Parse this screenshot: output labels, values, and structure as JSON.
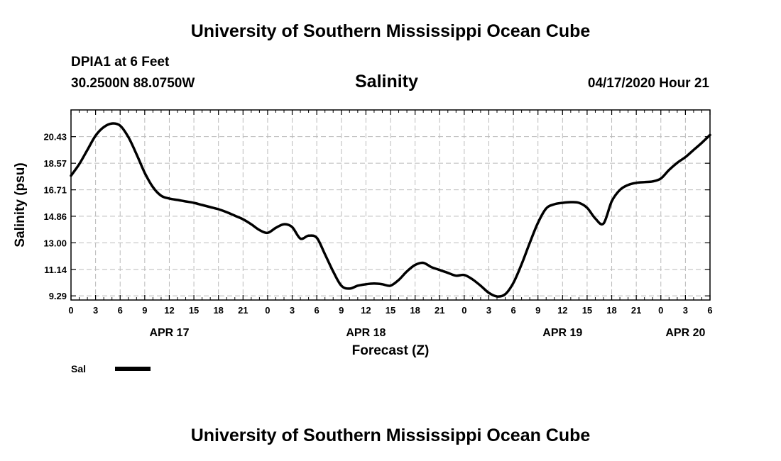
{
  "header": {
    "title": "University of Southern Mississippi Ocean Cube",
    "station": "DPIA1 at 6 Feet",
    "coordinates": "30.2500N 88.0750W",
    "issued": "04/17/2020 Hour 21"
  },
  "footer": {
    "title": "University of Southern Mississippi Ocean Cube"
  },
  "chart_data": {
    "type": "line",
    "title": "Salinity",
    "xlabel": "Forecast (Z)",
    "ylabel": "Salinity (psu)",
    "ylim": [
      9.0,
      22.3
    ],
    "xlim": [
      0,
      78
    ],
    "x_unit": "hours from APR 17 00Z",
    "y_ticks": [
      "9.29",
      "11.14",
      "13.00",
      "14.86",
      "16.71",
      "18.57",
      "20.43"
    ],
    "y_tick_values": [
      9.29,
      11.14,
      13.0,
      14.86,
      16.71,
      18.57,
      20.43
    ],
    "x_ticks": [
      "0",
      "3",
      "6",
      "9",
      "12",
      "15",
      "18",
      "21",
      "0",
      "3",
      "6",
      "9",
      "12",
      "15",
      "18",
      "21",
      "0",
      "3",
      "6",
      "9",
      "12",
      "15",
      "18",
      "21",
      "0",
      "3",
      "6"
    ],
    "date_labels": [
      {
        "label": "APR 17",
        "at_hour": 12
      },
      {
        "label": "APR 18",
        "at_hour": 36
      },
      {
        "label": "APR 19",
        "at_hour": 60
      },
      {
        "label": "APR 20",
        "at_hour": 75
      }
    ],
    "grid": true,
    "legend_position": "bottom-left",
    "series": [
      {
        "name": "Sal",
        "color": "#000000",
        "x": [
          0,
          1,
          2,
          3,
          4,
          5,
          6,
          7,
          8,
          9,
          10,
          11,
          12,
          13,
          14,
          15,
          16,
          17,
          18,
          19,
          20,
          21,
          22,
          23,
          24,
          25,
          26,
          27,
          28,
          29,
          30,
          31,
          32,
          33,
          34,
          35,
          36,
          37,
          38,
          39,
          40,
          41,
          42,
          43,
          44,
          45,
          46,
          47,
          48,
          49,
          50,
          51,
          52,
          53,
          54,
          55,
          56,
          57,
          58,
          59,
          60,
          61,
          62,
          63,
          64,
          65,
          66,
          67,
          68,
          69,
          70,
          71,
          72,
          73,
          74,
          75,
          76,
          77,
          78
        ],
        "y": [
          17.7,
          18.5,
          19.5,
          20.5,
          21.1,
          21.35,
          21.2,
          20.4,
          19.2,
          17.9,
          16.9,
          16.3,
          16.1,
          16.0,
          15.9,
          15.8,
          15.65,
          15.5,
          15.35,
          15.15,
          14.9,
          14.65,
          14.3,
          13.9,
          13.7,
          14.05,
          14.3,
          14.1,
          13.3,
          13.5,
          13.35,
          12.2,
          11.0,
          10.0,
          9.8,
          10.0,
          10.1,
          10.15,
          10.1,
          10.0,
          10.4,
          11.0,
          11.45,
          11.6,
          11.3,
          11.1,
          10.9,
          10.7,
          10.75,
          10.45,
          10.0,
          9.5,
          9.25,
          9.4,
          10.2,
          11.5,
          13.0,
          14.4,
          15.4,
          15.7,
          15.8,
          15.85,
          15.8,
          15.45,
          14.7,
          14.35,
          15.9,
          16.7,
          17.05,
          17.2,
          17.25,
          17.3,
          17.5,
          18.1,
          18.6,
          19.0,
          19.5,
          20.0,
          20.55
        ]
      }
    ]
  }
}
